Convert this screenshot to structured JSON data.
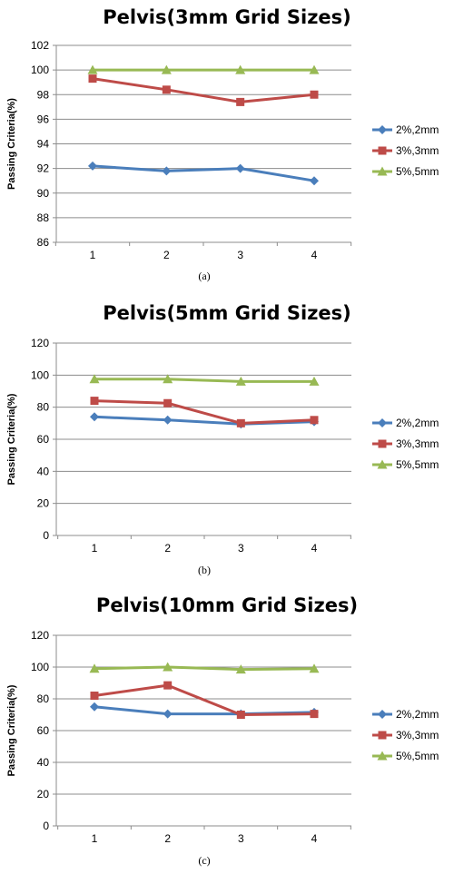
{
  "chart_data": [
    {
      "type": "line",
      "title": "Pelvis(3mm Grid Sizes)",
      "caption": "(a)",
      "ylabel": "Passing Criteria(%)",
      "xlabel": "",
      "x": [
        1,
        2,
        3,
        4
      ],
      "x_tick_labels": [
        "1",
        "2",
        "3",
        "4"
      ],
      "ylim": [
        86,
        102
      ],
      "yticks": [
        86,
        88,
        90,
        92,
        94,
        96,
        98,
        100,
        102
      ],
      "y_tick_labels": [
        "86",
        "88",
        "90",
        "92",
        "94",
        "96",
        "98",
        "100",
        "102"
      ],
      "grid": true,
      "legend_position": "right",
      "series": [
        {
          "name": "2%,2mm",
          "color": "#4a7ebb",
          "marker": "diamond",
          "values": [
            92.2,
            91.8,
            92.0,
            91.0
          ]
        },
        {
          "name": "3%,3mm",
          "color": "#be4b48",
          "marker": "square",
          "values": [
            99.3,
            98.4,
            97.4,
            98.0
          ]
        },
        {
          "name": "5%,5mm",
          "color": "#98b954",
          "marker": "triangle",
          "values": [
            100,
            100,
            100,
            100
          ]
        }
      ]
    },
    {
      "type": "line",
      "title": "Pelvis(5mm Grid Sizes)",
      "caption": "(b)",
      "ylabel": "Passing Criteria(%)",
      "xlabel": "",
      "x": [
        1,
        2,
        3,
        4
      ],
      "x_tick_labels": [
        "1",
        "2",
        "3",
        "4"
      ],
      "ylim": [
        0,
        120
      ],
      "yticks": [
        0,
        20,
        40,
        60,
        80,
        100,
        120
      ],
      "y_tick_labels": [
        "0",
        "20",
        "40",
        "60",
        "80",
        "100",
        "120"
      ],
      "grid": true,
      "legend_position": "right",
      "series": [
        {
          "name": "2%,2mm",
          "color": "#4a7ebb",
          "marker": "diamond",
          "values": [
            74,
            72,
            69.5,
            71
          ]
        },
        {
          "name": "3%,3mm",
          "color": "#be4b48",
          "marker": "square",
          "values": [
            84,
            82.5,
            70,
            72
          ]
        },
        {
          "name": "5%,5mm",
          "color": "#98b954",
          "marker": "triangle",
          "values": [
            97.5,
            97.5,
            96,
            96
          ]
        }
      ]
    },
    {
      "type": "line",
      "title": "Pelvis(10mm Grid Sizes)",
      "caption": "(c)",
      "ylabel": "Passing Criteria(%)",
      "xlabel": "",
      "x": [
        1,
        2,
        3,
        4
      ],
      "x_tick_labels": [
        "1",
        "2",
        "3",
        "4"
      ],
      "ylim": [
        0,
        120
      ],
      "yticks": [
        0,
        20,
        40,
        60,
        80,
        100,
        120
      ],
      "y_tick_labels": [
        "0",
        "20",
        "40",
        "60",
        "80",
        "100",
        "120"
      ],
      "grid": true,
      "legend_position": "right",
      "series": [
        {
          "name": "2%,2mm",
          "color": "#4a7ebb",
          "marker": "diamond",
          "values": [
            75,
            70.5,
            70.5,
            71.5
          ]
        },
        {
          "name": "3%,3mm",
          "color": "#be4b48",
          "marker": "square",
          "values": [
            82,
            88.5,
            70,
            70.5
          ]
        },
        {
          "name": "5%,5mm",
          "color": "#98b954",
          "marker": "triangle",
          "values": [
            99,
            100,
            98.5,
            99
          ]
        }
      ]
    }
  ]
}
